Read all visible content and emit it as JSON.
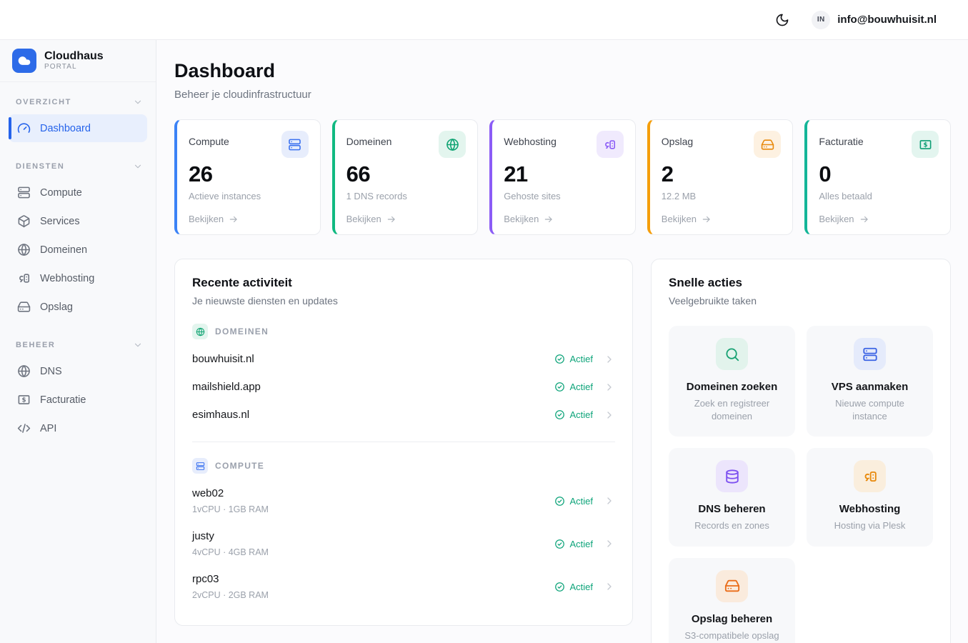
{
  "topbar": {
    "theme_icon": "moon-icon",
    "avatar_initials": "IN",
    "email": "info@bouwhuisit.nl"
  },
  "icons": {
    "brand": "cloud-icon",
    "section_chevron": "chevron-down-icon",
    "row_chevron": "chevron-right-icon",
    "status": "check-circle-icon",
    "link_arrow": "arrow-right-icon"
  },
  "sidebar": {
    "brand": {
      "name": "Cloudhaus",
      "sub": "PORTAL"
    },
    "sections": [
      {
        "label": "OVERZICHT",
        "items": [
          {
            "label": "Dashboard",
            "icon": "gauge-icon",
            "active": true
          }
        ]
      },
      {
        "label": "DIENSTEN",
        "items": [
          {
            "label": "Compute",
            "icon": "server-icon"
          },
          {
            "label": "Services",
            "icon": "package-icon"
          },
          {
            "label": "Domeinen",
            "icon": "globe-icon"
          },
          {
            "label": "Webhosting",
            "icon": "plesk-icon"
          },
          {
            "label": "Opslag",
            "icon": "hard-drive-icon"
          }
        ]
      },
      {
        "label": "BEHEER",
        "items": [
          {
            "label": "DNS",
            "icon": "globe-icon"
          },
          {
            "label": "Facturatie",
            "icon": "banknote-icon"
          },
          {
            "label": "API",
            "icon": "code-icon"
          }
        ]
      }
    ]
  },
  "header": {
    "title": "Dashboard",
    "subtitle": "Beheer je cloudinfrastructuur"
  },
  "stats": [
    {
      "label": "Compute",
      "value": 26,
      "sub": "Actieve instances",
      "link_label": "Bekijken",
      "icon": "server-icon",
      "accent": "#3b82f6",
      "icon_bg": "#e7edfc",
      "icon_fg": "#3b72f0"
    },
    {
      "label": "Domeinen",
      "value": 66,
      "sub": "1 DNS records",
      "link_label": "Bekijken",
      "icon": "globe-icon",
      "accent": "#10b981",
      "icon_bg": "#e3f5ee",
      "icon_fg": "#10a473"
    },
    {
      "label": "Webhosting",
      "value": 21,
      "sub": "Gehoste sites",
      "link_label": "Bekijken",
      "icon": "plesk-icon",
      "accent": "#8b5cf6",
      "icon_bg": "#f0eafd",
      "icon_fg": "#8b5cf6"
    },
    {
      "label": "Opslag",
      "value": 2,
      "sub": "12.2 MB",
      "link_label": "Bekijken",
      "icon": "hard-drive-icon",
      "accent": "#f59e0b",
      "icon_bg": "#fdf1e1",
      "icon_fg": "#e8890c"
    },
    {
      "label": "Facturatie",
      "value": 0,
      "sub": "Alles betaald",
      "link_label": "Bekijken",
      "icon": "banknote-icon",
      "accent": "#13b598",
      "icon_bg": "#e3f5ef",
      "icon_fg": "#0d9e74"
    }
  ],
  "activity": {
    "title": "Recente activiteit",
    "subtitle": "Je nieuwste diensten en updates",
    "groups": [
      {
        "label": "DOMEINEN",
        "icon": "globe-icon",
        "icon_bg": "#e3f5ee",
        "icon_fg": "#10a473",
        "items": [
          {
            "name": "bouwhuisit.nl",
            "status": "Actief"
          },
          {
            "name": "mailshield.app",
            "status": "Actief"
          },
          {
            "name": "esimhaus.nl",
            "status": "Actief"
          }
        ]
      },
      {
        "label": "COMPUTE",
        "icon": "server-icon",
        "icon_bg": "#e7edfc",
        "icon_fg": "#3b72f0",
        "items": [
          {
            "name": "web02",
            "meta": "1vCPU · 1GB RAM",
            "status": "Actief"
          },
          {
            "name": "justy",
            "meta": "4vCPU · 4GB RAM",
            "status": "Actief"
          },
          {
            "name": "rpc03",
            "meta": "2vCPU · 2GB RAM",
            "status": "Actief"
          }
        ]
      }
    ]
  },
  "quick_actions": {
    "title": "Snelle acties",
    "subtitle": "Veelgebruikte taken",
    "items": [
      {
        "title": "Domeinen zoeken",
        "subtitle": "Zoek en registreer domeinen",
        "icon": "search-icon",
        "icon_bg": "#e2f3ec",
        "icon_fg": "#16a172"
      },
      {
        "title": "VPS aanmaken",
        "subtitle": "Nieuwe compute instance",
        "icon": "server-icon",
        "icon_bg": "#e5ebfb",
        "icon_fg": "#3b63e4"
      },
      {
        "title": "DNS beheren",
        "subtitle": "Records en zones",
        "icon": "database-icon",
        "icon_bg": "#ece5fc",
        "icon_fg": "#7c4ff0"
      },
      {
        "title": "Webhosting",
        "subtitle": "Hosting via Plesk",
        "icon": "plesk-icon",
        "icon_bg": "#faeedd",
        "icon_fg": "#e8890c"
      },
      {
        "title": "Opslag beheren",
        "subtitle": "S3-compatibele opslag",
        "icon": "hard-drive-icon",
        "icon_bg": "#faebdd",
        "icon_fg": "#ea6c18"
      }
    ]
  }
}
